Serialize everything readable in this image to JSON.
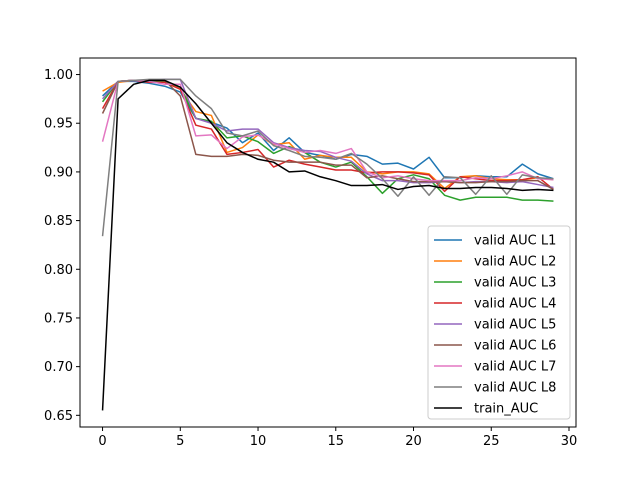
{
  "chart_data": {
    "type": "line",
    "title": "",
    "xlabel": "",
    "ylabel": "",
    "xlim": [
      -1.45,
      30.45
    ],
    "ylim": [
      0.638,
      1.017
    ],
    "xticks": [
      0,
      5,
      10,
      15,
      20,
      25,
      30
    ],
    "yticks": [
      0.65,
      0.7,
      0.75,
      0.8,
      0.85,
      0.9,
      0.95,
      1.0
    ],
    "xtick_labels": [
      "0",
      "5",
      "10",
      "15",
      "20",
      "25",
      "30"
    ],
    "ytick_labels": [
      "0.65",
      "0.70",
      "0.75",
      "0.80",
      "0.85",
      "0.90",
      "0.95",
      "1.00"
    ],
    "grid": false,
    "legend_position": "lower-right",
    "x": [
      0,
      1,
      2,
      3,
      4,
      5,
      6,
      7,
      8,
      9,
      10,
      11,
      12,
      13,
      14,
      15,
      16,
      17,
      18,
      19,
      20,
      21,
      22,
      23,
      24,
      25,
      26,
      27,
      28,
      29
    ],
    "series": [
      {
        "name": "valid AUC L1",
        "color": "#1f77b4",
        "values": [
          0.978,
          0.993,
          0.993,
          0.991,
          0.988,
          0.982,
          0.955,
          0.951,
          0.945,
          0.93,
          0.94,
          0.922,
          0.935,
          0.92,
          0.917,
          0.913,
          0.918,
          0.916,
          0.908,
          0.909,
          0.903,
          0.915,
          0.894,
          0.894,
          0.896,
          0.895,
          0.895,
          0.908,
          0.898,
          0.893
        ]
      },
      {
        "name": "valid AUC L2",
        "color": "#ff7f0e",
        "values": [
          0.983,
          0.992,
          0.994,
          0.993,
          0.992,
          0.985,
          0.962,
          0.958,
          0.92,
          0.925,
          0.938,
          0.928,
          0.93,
          0.913,
          0.917,
          0.915,
          0.915,
          0.9,
          0.898,
          0.9,
          0.9,
          0.898,
          0.883,
          0.895,
          0.896,
          0.893,
          0.892,
          0.892,
          0.894,
          0.892
        ]
      },
      {
        "name": "valid AUC L3",
        "color": "#2ca02c",
        "values": [
          0.972,
          0.993,
          0.994,
          0.993,
          0.993,
          0.987,
          0.955,
          0.952,
          0.935,
          0.937,
          0.931,
          0.919,
          0.926,
          0.92,
          0.91,
          0.905,
          0.91,
          0.895,
          0.878,
          0.893,
          0.897,
          0.893,
          0.876,
          0.871,
          0.874,
          0.874,
          0.874,
          0.871,
          0.871,
          0.87
        ]
      },
      {
        "name": "valid AUC L4",
        "color": "#d62728",
        "values": [
          0.965,
          0.993,
          0.994,
          0.992,
          0.992,
          0.985,
          0.948,
          0.944,
          0.918,
          0.92,
          0.923,
          0.905,
          0.912,
          0.908,
          0.905,
          0.902,
          0.902,
          0.899,
          0.9,
          0.9,
          0.899,
          0.897,
          0.88,
          0.895,
          0.893,
          0.891,
          0.891,
          0.892,
          0.895,
          0.882
        ]
      },
      {
        "name": "valid AUC L5",
        "color": "#9467bd",
        "values": [
          0.975,
          0.993,
          0.994,
          0.994,
          0.995,
          0.995,
          0.955,
          0.95,
          0.942,
          0.944,
          0.944,
          0.93,
          0.925,
          0.922,
          0.921,
          0.915,
          0.911,
          0.898,
          0.891,
          0.891,
          0.889,
          0.889,
          0.89,
          0.889,
          0.89,
          0.89,
          0.889,
          0.89,
          0.887,
          0.884
        ]
      },
      {
        "name": "valid AUC L6",
        "color": "#8c564b",
        "values": [
          0.96,
          0.993,
          0.994,
          0.994,
          0.994,
          0.978,
          0.918,
          0.916,
          0.916,
          0.918,
          0.917,
          0.912,
          0.91,
          0.91,
          0.91,
          0.907,
          0.907,
          0.894,
          0.896,
          0.893,
          0.89,
          0.89,
          0.89,
          0.889,
          0.889,
          0.89,
          0.89,
          0.891,
          0.891,
          0.882
        ]
      },
      {
        "name": "valid AUC L7",
        "color": "#e377c2",
        "values": [
          0.931,
          0.993,
          0.994,
          0.993,
          0.99,
          0.99,
          0.937,
          0.938,
          0.924,
          0.936,
          0.938,
          0.929,
          0.924,
          0.92,
          0.922,
          0.919,
          0.924,
          0.9,
          0.894,
          0.896,
          0.893,
          0.891,
          0.891,
          0.891,
          0.894,
          0.893,
          0.896,
          0.9,
          0.893,
          0.892
        ]
      },
      {
        "name": "valid AUC L8",
        "color": "#7f7f7f",
        "values": [
          0.834,
          0.993,
          0.994,
          0.995,
          0.995,
          0.995,
          0.978,
          0.965,
          0.94,
          0.937,
          0.942,
          0.927,
          0.922,
          0.916,
          0.915,
          0.913,
          0.919,
          0.908,
          0.893,
          0.875,
          0.895,
          0.876,
          0.895,
          0.894,
          0.877,
          0.896,
          0.877,
          0.897,
          0.894,
          0.893
        ]
      },
      {
        "name": "train_AUC",
        "color": "#000000",
        "values": [
          0.655,
          0.975,
          0.99,
          0.994,
          0.994,
          0.987,
          0.97,
          0.95,
          0.93,
          0.92,
          0.913,
          0.91,
          0.9,
          0.901,
          0.895,
          0.891,
          0.886,
          0.886,
          0.887,
          0.882,
          0.885,
          0.886,
          0.883,
          0.883,
          0.884,
          0.884,
          0.883,
          0.881,
          0.882,
          0.881
        ]
      }
    ]
  }
}
